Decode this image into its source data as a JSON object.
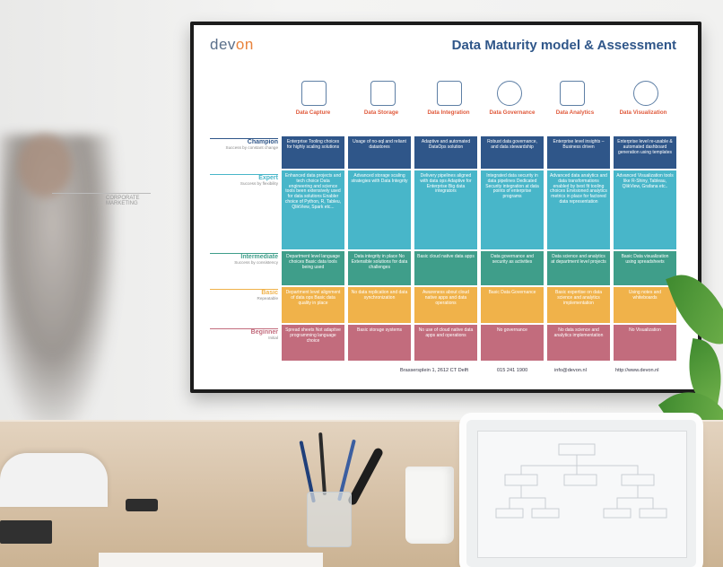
{
  "poster": {
    "logo_prefix": "dev",
    "logo_suffix": "on",
    "title": "Data Maturity model & Assessment",
    "columns": [
      {
        "icon": "database-hand-icon",
        "label": "Data Capture"
      },
      {
        "icon": "storage-icon",
        "label": "Data Storage"
      },
      {
        "icon": "integration-icon",
        "label": "Data Integration"
      },
      {
        "icon": "governance-icon",
        "label": "Data Governance"
      },
      {
        "icon": "analytics-icon",
        "label": "Data Analytics"
      },
      {
        "icon": "visualization-icon",
        "label": "Data Visualization"
      }
    ],
    "levels": [
      {
        "name": "Champion",
        "sub": "Success by constant change",
        "color": "#2f5689"
      },
      {
        "name": "Expert",
        "sub": "Success by flexibility",
        "color": "#48b6c9"
      },
      {
        "name": "Intermediate",
        "sub": "Success by consistency",
        "color": "#3f9e8a"
      },
      {
        "name": "Basic",
        "sub": "Repeatable",
        "color": "#f0b24a"
      },
      {
        "name": "Beginner",
        "sub": "Initial",
        "color": "#c26c7d"
      }
    ],
    "rows": [
      [
        "Enterprise Tooling choices for highly scaling solutions",
        "Usage of no-sql and reliant datastores",
        "Adaptive and automated DataOps solution",
        "Robust data governance, and data stewardship",
        "Enterprise level insights – Business driven",
        "Enterprise level re-usable & automated dashboard generation using templates"
      ],
      [
        "Enhanced data projects and tech choice Data engineering and science tools been extensively used for data solutions Enabler choice of Python, R, Tableu, QlikView, Spark etc...",
        "Advanced storage scaling strategies with Data Integrity",
        "Delivery pipelines aligned with data ops Adaptive for Enterprise Big data integrators",
        "Integrated data security in data pipelines Dedicated Security integration at data points of enterprise programs",
        "Advanced data analytics and data transformations enabled by best fit tooling choices Envisioned analytics metrics in place for factored data representation",
        "Advanced Visualization tools like R-Shiny, Tableau, QlikView, Grafana etc.."
      ],
      [
        "Department level language choices Basic data tools being used",
        "Data integrity in place No Extensible solutions for data challenges",
        "Basic cloud native data apps",
        "Data governance and security as activities",
        "Data science and analytics at department level projects",
        "Basic Data visualization using spreadsheets"
      ],
      [
        "Department level alignment of data ops Basic data quality in place",
        "No data replication and data synchronization",
        "Awareness about cloud native apps and data operations",
        "Basic Data Governance",
        "Basic expertise on data science and analytics implementation",
        "Using notes and whiteboards"
      ],
      [
        "Spread sheets Not adaptive programming language choice",
        "Basic storage systems",
        "No use of cloud native data apps and operations",
        "No governance",
        "No data science and analytics implementation",
        "No Visualization"
      ]
    ],
    "footer": {
      "address": "Brassersplein 1, 2612 CT Delft",
      "phone": "015 241 1900",
      "email": "info@devon.nl",
      "web": "http://www.devon.nl"
    }
  },
  "sketch_text": "CORPORATE MARKETING"
}
